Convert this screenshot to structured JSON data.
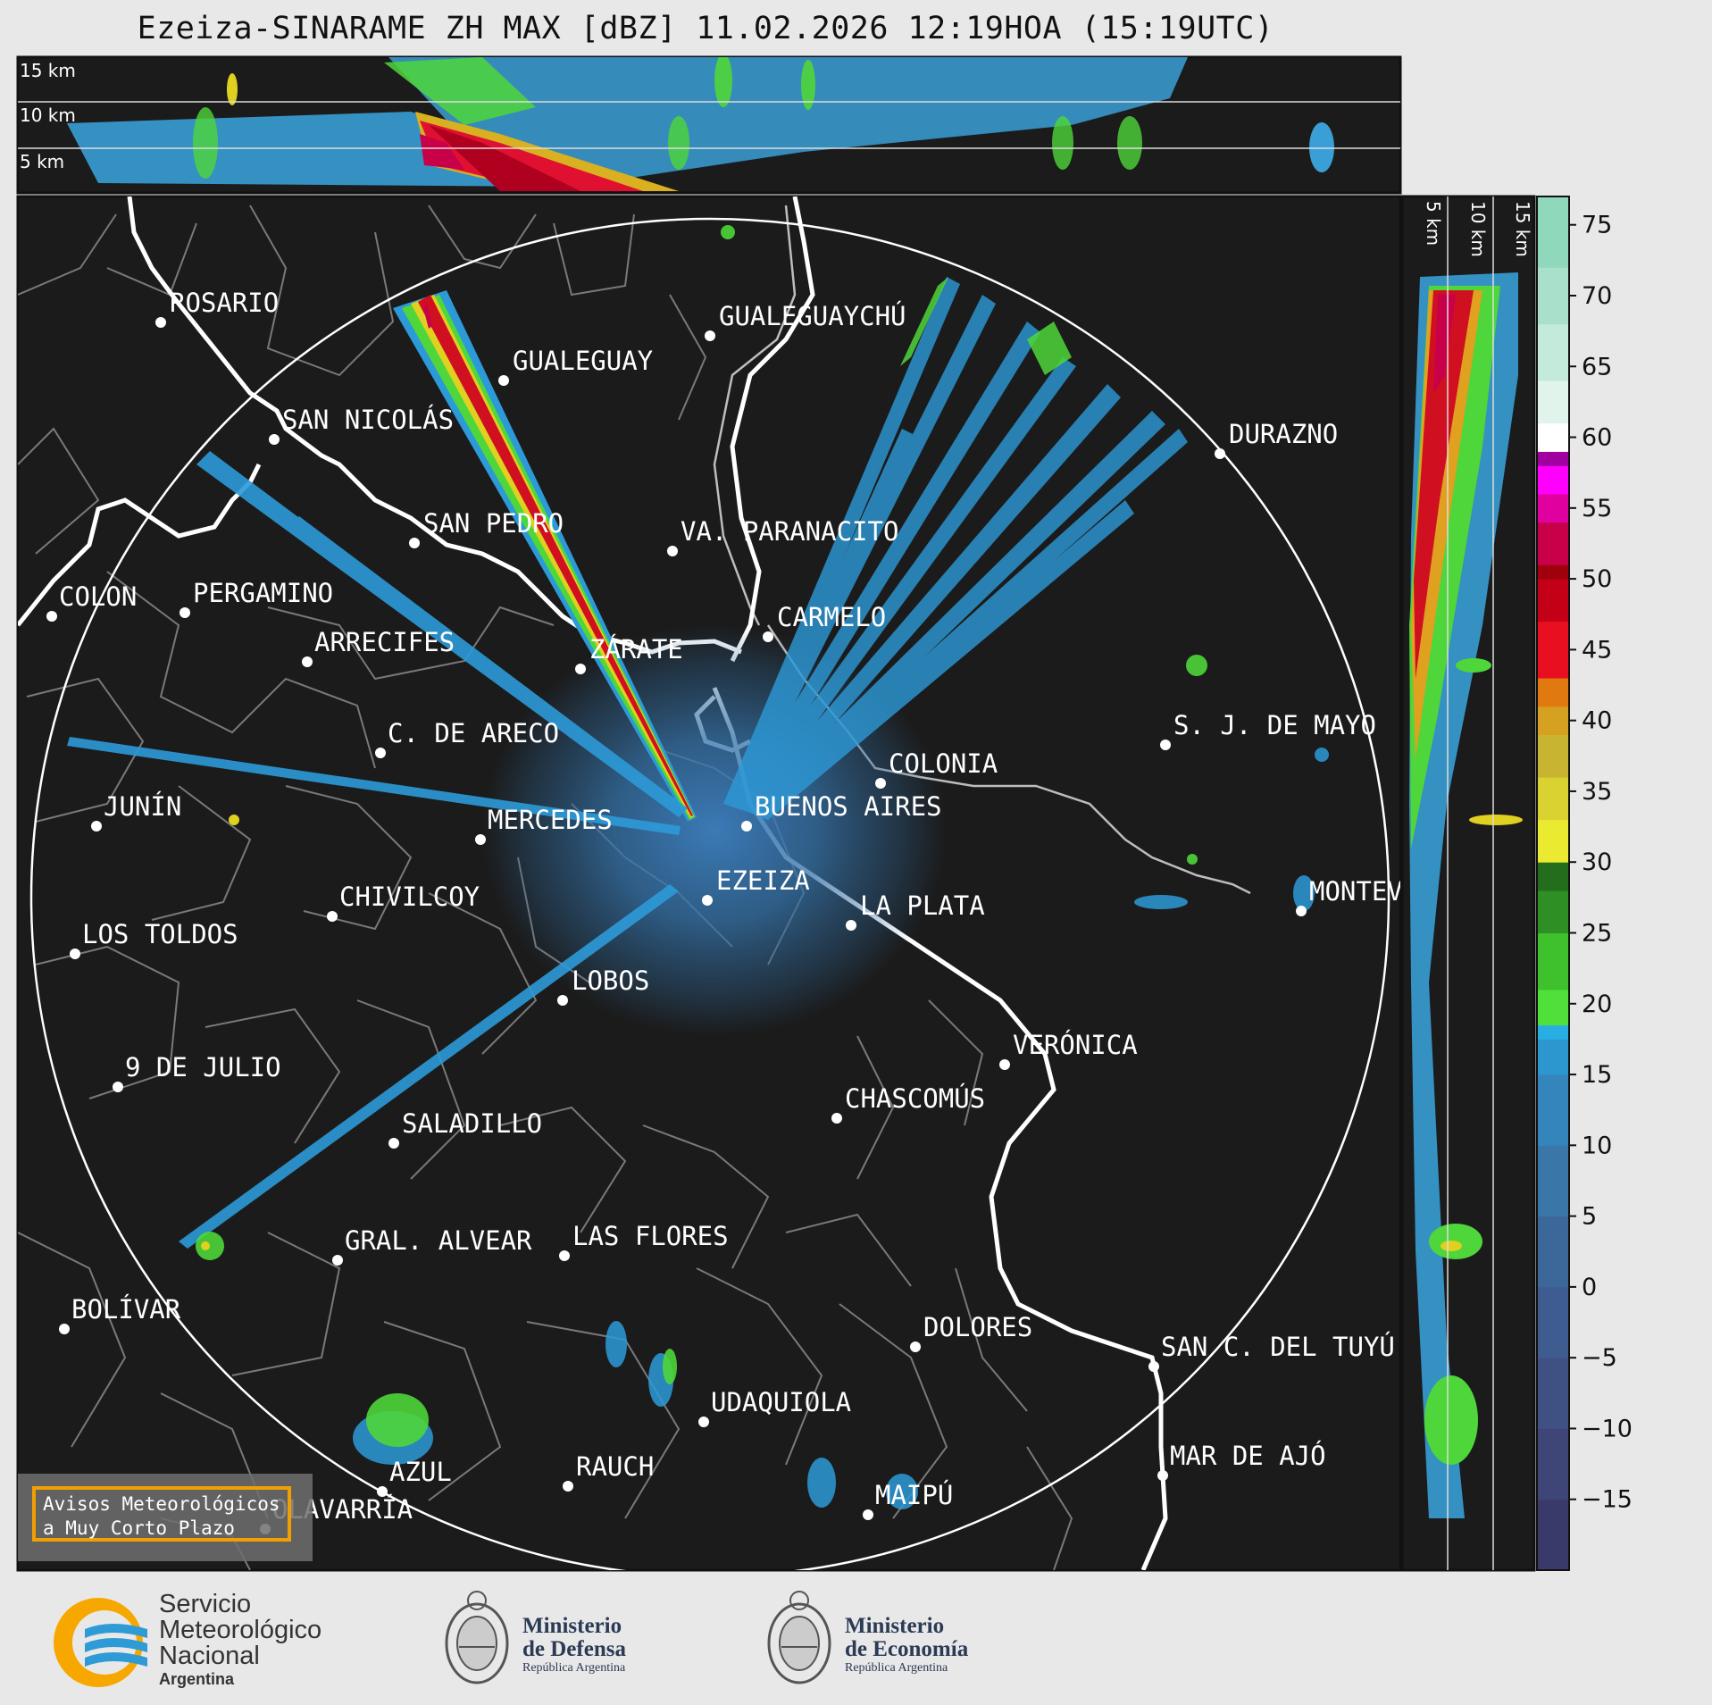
{
  "title": "Ezeiza-SINARAME ZH MAX [dBZ] 11.02.2026 12:19HOA (15:19UTC)",
  "height_labels_top": [
    "15 km",
    "10 km",
    "5 km"
  ],
  "height_labels_side": [
    "5 km",
    "10 km",
    "15 km"
  ],
  "colorbar": {
    "unit": "dBZ",
    "ticks": [
      "75",
      "70",
      "65",
      "60",
      "55",
      "50",
      "45",
      "40",
      "35",
      "30",
      "25",
      "20",
      "15",
      "10",
      "5",
      "0",
      "−5",
      "−10",
      "−15"
    ],
    "range": [
      -20,
      77
    ]
  },
  "cities": [
    {
      "name": "ROSARIO"
    },
    {
      "name": "GUALEGUAYCHÚ"
    },
    {
      "name": "GUALEGUAY"
    },
    {
      "name": "SAN NICOLÁS"
    },
    {
      "name": "DURAZNO"
    },
    {
      "name": "SAN PEDRO"
    },
    {
      "name": "VA. PARANACITO"
    },
    {
      "name": "COLON"
    },
    {
      "name": "PERGAMINO"
    },
    {
      "name": "CARMELO"
    },
    {
      "name": "ARRECIFES"
    },
    {
      "name": "ZÁRATE"
    },
    {
      "name": "S. J. DE MAYO"
    },
    {
      "name": "C. DE ARECO"
    },
    {
      "name": "COLONIA"
    },
    {
      "name": "JUNÍN"
    },
    {
      "name": "BUENOS AIRES"
    },
    {
      "name": "MERCEDES"
    },
    {
      "name": "EZEIZA"
    },
    {
      "name": "MONTEVIDEO"
    },
    {
      "name": "CHIVILCOY"
    },
    {
      "name": "LA PLATA"
    },
    {
      "name": "LOS TOLDOS"
    },
    {
      "name": "LOBOS"
    },
    {
      "name": "VERÓNICA"
    },
    {
      "name": "9 DE JULIO"
    },
    {
      "name": "CHASCOMÚS"
    },
    {
      "name": "SALADILLO"
    },
    {
      "name": "GRAL. ALVEAR"
    },
    {
      "name": "LAS FLORES"
    },
    {
      "name": "BOLÍVAR"
    },
    {
      "name": "DOLORES"
    },
    {
      "name": "SAN C. DEL TUYÚ"
    },
    {
      "name": "UDAQUIOLA"
    },
    {
      "name": "MAR DE AJÓ"
    },
    {
      "name": "RAUCH"
    },
    {
      "name": "AZUL"
    },
    {
      "name": "OLAVARRÍA"
    },
    {
      "name": "MAIPÚ"
    }
  ],
  "avisos": {
    "line1": "Avisos Meteorológicos",
    "line2": "a Muy Corto Plazo"
  },
  "logos": {
    "smn": {
      "line1": "Servicio",
      "line2": "Meteorológico",
      "line3": "Nacional",
      "line4": "Argentina"
    },
    "defensa": {
      "line1": "Ministerio",
      "line2": "de Defensa",
      "line3": "República Argentina"
    },
    "economia": {
      "line1": "Ministerio",
      "line2": "de Economía",
      "line3": "República Argentina"
    }
  },
  "colors": {
    "panel_bg": "#1b1b1b",
    "range_ring": "#ffffff",
    "frame": "#111111",
    "accent_orange": "#f0a000"
  }
}
